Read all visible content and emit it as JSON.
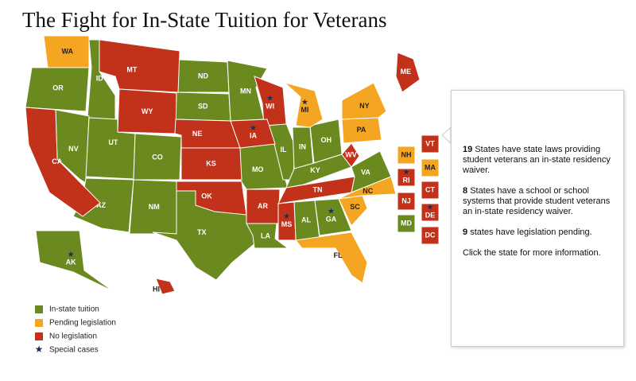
{
  "title": "The Fight for In-State Tuition for Veterans",
  "legend": [
    {
      "label": "In-state tuition",
      "color": "#6a8a1f",
      "states": [
        {
          "label": "OR"
        },
        {
          "label": "ID"
        },
        {
          "label": "NV"
        },
        {
          "label": "UT"
        },
        {
          "label": "AZ"
        },
        {
          "label": "NM"
        },
        {
          "label": "CO"
        },
        {
          "label": "ND"
        },
        {
          "label": "SD"
        },
        {
          "label": "MN"
        },
        {
          "label": "MO"
        },
        {
          "label": "IL"
        },
        {
          "label": "IN"
        },
        {
          "label": "OH"
        },
        {
          "label": "KY"
        },
        {
          "label": "VA"
        },
        {
          "label": "TX"
        },
        {
          "label": "LA"
        },
        {
          "label": "AL"
        },
        {
          "label": "GA",
          "special": true
        },
        {
          "label": "AK",
          "special": true
        },
        {
          "label": "MD"
        }
      ]
    },
    {
      "label": "Pending legislation",
      "color": "#f4a622",
      "states": [
        {
          "label": "WA"
        },
        {
          "label": "MI",
          "special": true
        },
        {
          "label": "NY"
        },
        {
          "label": "PA"
        },
        {
          "label": "NC"
        },
        {
          "label": "SC"
        },
        {
          "label": "FL"
        },
        {
          "label": "NH"
        },
        {
          "label": "MA"
        }
      ]
    },
    {
      "label": "No legislation",
      "color": "#c2311a",
      "states": [
        {
          "label": "MT"
        },
        {
          "label": "WY"
        },
        {
          "label": "NE"
        },
        {
          "label": "KS"
        },
        {
          "label": "OK"
        },
        {
          "label": "AR"
        },
        {
          "label": "MS",
          "special": true
        },
        {
          "label": "TN"
        },
        {
          "label": "WV"
        },
        {
          "label": "WI",
          "special": true
        },
        {
          "label": "IA",
          "special": true
        },
        {
          "label": "ME"
        },
        {
          "label": "CA"
        },
        {
          "label": "HI"
        },
        {
          "label": "VT"
        },
        {
          "label": "RI",
          "special": true
        },
        {
          "label": "CT"
        },
        {
          "label": "NJ"
        },
        {
          "label": "DE",
          "special": true
        },
        {
          "label": "DC"
        }
      ]
    },
    {
      "label": "Special cases",
      "color": "#1c2d5c",
      "symbol": "★"
    }
  ],
  "info": [
    {
      "count": 19,
      "text": "States have state laws providing student veterans an in-state residency waiver."
    },
    {
      "count": 8,
      "text": "States have a school or school systems that provide student veterans an in-state residency waiver."
    },
    {
      "count": 9,
      "text": "states have legislation pending."
    },
    {
      "text": "Click the state for more information."
    }
  ]
}
